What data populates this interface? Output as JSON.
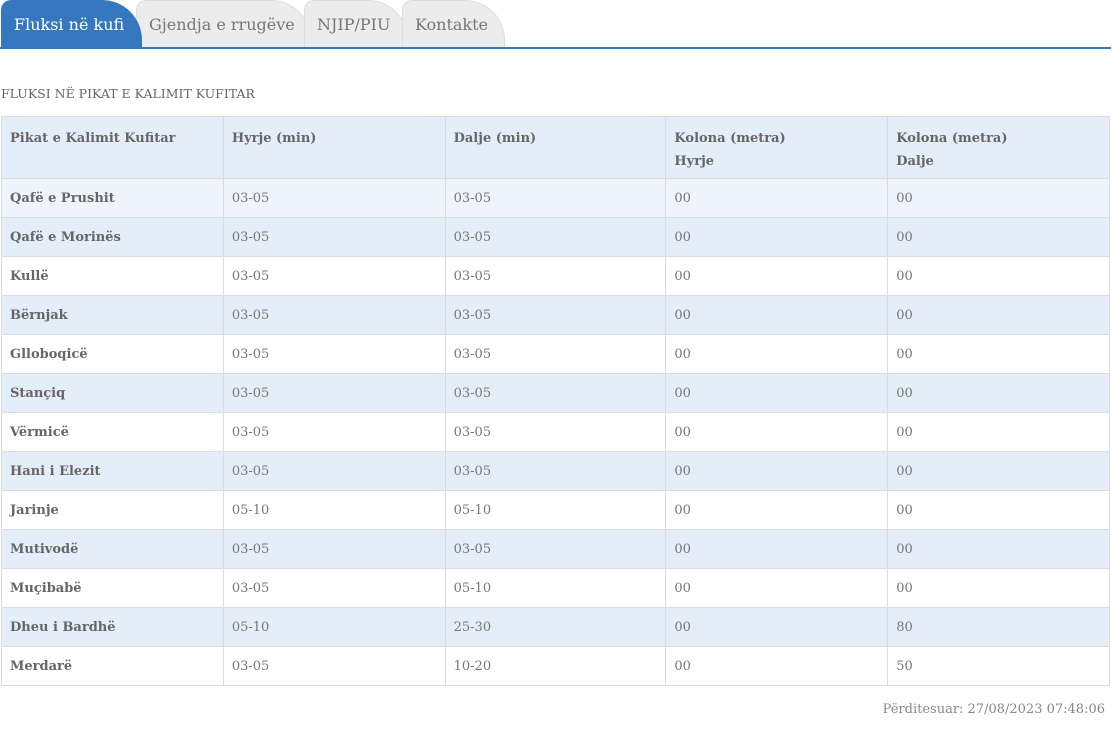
{
  "tabs": [
    {
      "label": "Fluksi në kufi",
      "active": true
    },
    {
      "label": "Gjendja e rrugëve"
    },
    {
      "label": "NJIP/PIU"
    },
    {
      "label": "Kontakte"
    }
  ],
  "accent_color": "#3678c0",
  "section_title": "FLUKSI NË PIKAT E KALIMIT KUFITAR",
  "table": {
    "headers": [
      [
        "Pikat e Kalimit Kufitar",
        ""
      ],
      [
        "Hyrje (min)",
        ""
      ],
      [
        "Dalje (min)",
        ""
      ],
      [
        "Kolona (metra)",
        "Hyrje"
      ],
      [
        "Kolona (metra)",
        "Dalje"
      ]
    ],
    "rows": [
      [
        "Qafë e Prushit",
        "03-05",
        "03-05",
        "00",
        "00"
      ],
      [
        "Qafë e Morinës",
        "03-05",
        "03-05",
        "00",
        "00"
      ],
      [
        "Kullë",
        "03-05",
        "03-05",
        "00",
        "00"
      ],
      [
        "Bërnjak",
        "03-05",
        "03-05",
        "00",
        "00"
      ],
      [
        "Glloboqicë",
        "03-05",
        "03-05",
        "00",
        "00"
      ],
      [
        "Stançiq",
        "03-05",
        "03-05",
        "00",
        "00"
      ],
      [
        "Vërmicë",
        "03-05",
        "03-05",
        "00",
        "00"
      ],
      [
        "Hani i Elezit",
        "03-05",
        "03-05",
        "00",
        "00"
      ],
      [
        "Jarinje",
        "05-10",
        "05-10",
        "00",
        "00"
      ],
      [
        "Mutivodë",
        "03-05",
        "03-05",
        "00",
        "00"
      ],
      [
        "Muçibabë",
        "03-05",
        "05-10",
        "00",
        "00"
      ],
      [
        "Dheu i Bardhë",
        "05-10",
        "25-30",
        "00",
        "80"
      ],
      [
        "Merdarë",
        "03-05",
        "10-20",
        "00",
        "50"
      ]
    ]
  },
  "updated": "Përditesuar: 27/08/2023 07:48:06"
}
